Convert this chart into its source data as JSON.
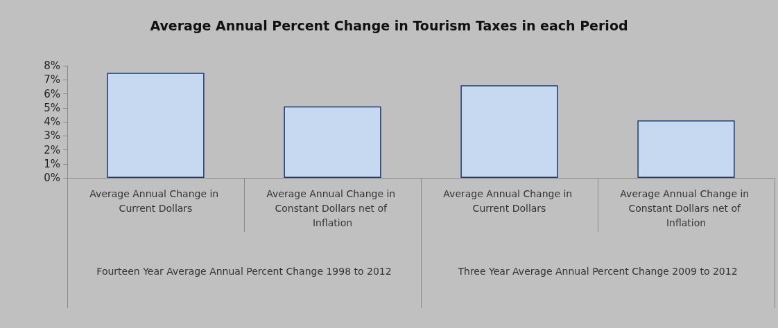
{
  "chart_data": {
    "type": "bar",
    "title": "Average Annual Percent Change in Tourism Taxes in each Period",
    "categories": [
      "Average Annual Change in Current Dollars",
      "Average Annual Change in Constant Dollars net of Inflation",
      "Average Annual Change in Current Dollars",
      "Average Annual Change in Constant Dollars net of Inflation"
    ],
    "values": [
      7.5,
      5.1,
      6.6,
      4.1
    ],
    "color": "#c6d9f1",
    "ylim": [
      0,
      8
    ],
    "yticks": [
      {
        "value": 0,
        "label": "0%"
      },
      {
        "value": 1,
        "label": "1%"
      },
      {
        "value": 2,
        "label": "2%"
      },
      {
        "value": 3,
        "label": "3%"
      },
      {
        "value": 4,
        "label": "4%"
      },
      {
        "value": 5,
        "label": "5%"
      },
      {
        "value": 6,
        "label": "6%"
      },
      {
        "value": 7,
        "label": "7%"
      },
      {
        "value": 8,
        "label": "8%"
      }
    ],
    "grid": false,
    "annotations": [
      "Fourteen Year Average Annual Percent Change 1998 to 2012",
      "Three Year Average Annual Percent Change 2009 to 2012"
    ]
  }
}
